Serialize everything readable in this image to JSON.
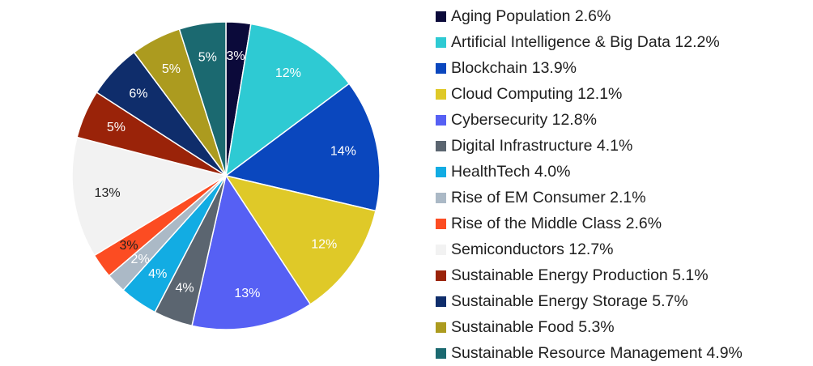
{
  "chart_data": {
    "type": "pie",
    "title": "",
    "legend_position": "right",
    "slices": [
      {
        "name": "Aging Population",
        "value": 2.6,
        "label": "3%",
        "legend": "Aging Population 2.6%",
        "color": "#0b0a3a",
        "label_color": "#ffffff"
      },
      {
        "name": "Artificial Intelligence & Big Data",
        "value": 12.2,
        "label": "12%",
        "legend": "Artificial Intelligence & Big Data 12.2%",
        "color": "#2ecad3",
        "label_color": "#ffffff"
      },
      {
        "name": "Blockchain",
        "value": 13.9,
        "label": "14%",
        "legend": "Blockchain 13.9%",
        "color": "#0a47be",
        "label_color": "#ffffff"
      },
      {
        "name": "Cloud Computing",
        "value": 12.1,
        "label": "12%",
        "legend": "Cloud Computing 12.1%",
        "color": "#dfc928",
        "label_color": "#ffffff"
      },
      {
        "name": "Cybersecurity",
        "value": 12.8,
        "label": "13%",
        "legend": "Cybersecurity 12.8%",
        "color": "#5660f4",
        "label_color": "#ffffff"
      },
      {
        "name": "Digital Infrastructure",
        "value": 4.1,
        "label": "4%",
        "legend": "Digital Infrastructure 4.1%",
        "color": "#5b6570",
        "label_color": "#ffffff"
      },
      {
        "name": "HealthTech",
        "value": 4.0,
        "label": "4%",
        "legend": "HealthTech 4.0%",
        "color": "#12ace3",
        "label_color": "#ffffff"
      },
      {
        "name": "Rise of EM Consumer",
        "value": 2.1,
        "label": "2%",
        "legend": "Rise of EM Consumer 2.1%",
        "color": "#abb9c6",
        "label_color": "#ffffff"
      },
      {
        "name": "Rise of the Middle Class",
        "value": 2.6,
        "label": "3%",
        "legend": "Rise of the Middle Class 2.6%",
        "color": "#fc4c22",
        "label_color": "#1f1f1f"
      },
      {
        "name": "Semiconductors",
        "value": 12.7,
        "label": "13%",
        "legend": "Semiconductors 12.7%",
        "color": "#f2f2f2",
        "label_color": "#1f1f1f"
      },
      {
        "name": "Sustainable Energy Production",
        "value": 5.1,
        "label": "5%",
        "legend": "Sustainable Energy Production 5.1%",
        "color": "#9a2309",
        "label_color": "#ffffff"
      },
      {
        "name": "Sustainable Energy Storage",
        "value": 5.7,
        "label": "6%",
        "legend": "Sustainable Energy Storage 5.7%",
        "color": "#0f2d6b",
        "label_color": "#ffffff"
      },
      {
        "name": "Sustainable Food",
        "value": 5.3,
        "label": "5%",
        "legend": "Sustainable Food 5.3%",
        "color": "#ac9b1f",
        "label_color": "#ffffff"
      },
      {
        "name": "Sustainable Resource Management",
        "value": 4.9,
        "label": "5%",
        "legend": "Sustainable Resource Management 4.9%",
        "color": "#1b6970",
        "label_color": "#ffffff"
      }
    ]
  }
}
